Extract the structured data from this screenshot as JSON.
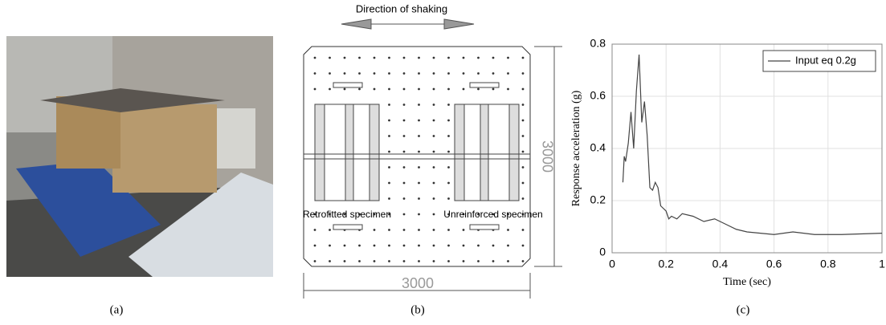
{
  "diagram": {
    "title": "Direction of shaking",
    "width_label": "3000",
    "height_label": "3000",
    "left_label": "Retrofitted specimen",
    "right_label": "Unreinforced specimen"
  },
  "captions": [
    "(a)",
    "(b)",
    "(c)"
  ],
  "chart_data": {
    "type": "line",
    "xlabel": "Time (sec)",
    "ylabel": "Response acceleration (g)",
    "xlim": [
      0,
      1
    ],
    "ylim": [
      0,
      0.8
    ],
    "xticks": [
      0,
      0.2,
      0.4,
      0.6,
      0.8,
      1
    ],
    "yticks": [
      0,
      0.2,
      0.4,
      0.6,
      0.8
    ],
    "grid": true,
    "legend": "upper right",
    "x": [
      0.04,
      0.045,
      0.05,
      0.06,
      0.07,
      0.08,
      0.09,
      0.1,
      0.11,
      0.12,
      0.13,
      0.14,
      0.15,
      0.16,
      0.17,
      0.18,
      0.2,
      0.21,
      0.22,
      0.24,
      0.26,
      0.3,
      0.34,
      0.38,
      0.42,
      0.46,
      0.5,
      0.6,
      0.67,
      0.75,
      0.85,
      1.0
    ],
    "series": [
      {
        "name": "Input eq 0.2g",
        "color": "#444444",
        "values": [
          0.27,
          0.37,
          0.35,
          0.42,
          0.54,
          0.4,
          0.62,
          0.76,
          0.5,
          0.58,
          0.45,
          0.25,
          0.24,
          0.27,
          0.25,
          0.18,
          0.16,
          0.13,
          0.14,
          0.13,
          0.15,
          0.14,
          0.12,
          0.13,
          0.11,
          0.09,
          0.08,
          0.07,
          0.08,
          0.07,
          0.07,
          0.075
        ]
      }
    ]
  }
}
